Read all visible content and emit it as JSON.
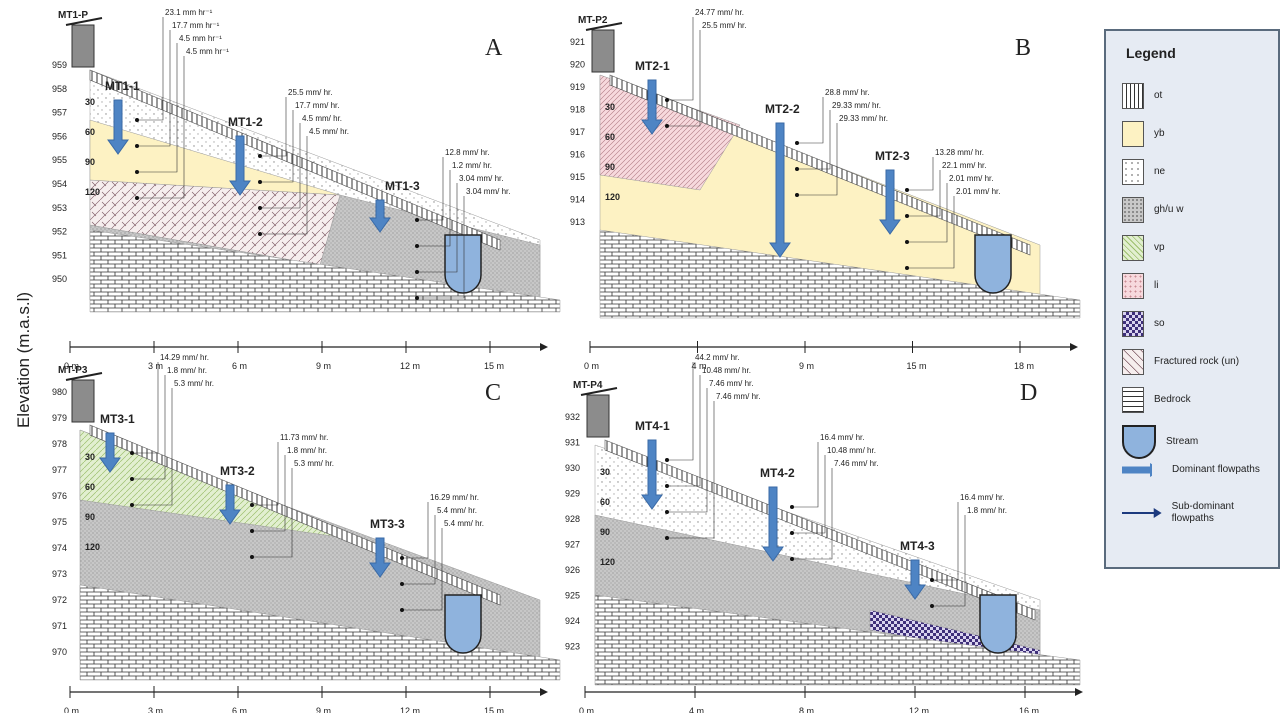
{
  "y_axis_label": "Elevation (m.a.s.l)",
  "panels": [
    {
      "letter": "A",
      "well": "MT1-P",
      "elevations": [
        "959",
        "958",
        "957",
        "956",
        "955",
        "954",
        "953",
        "952",
        "951",
        "950"
      ],
      "depths": [
        "30",
        "60",
        "90",
        "120"
      ],
      "x_ticks": [
        "0 m",
        "3 m",
        "6 m",
        "9 m",
        "12 m",
        "15 m"
      ],
      "stations": [
        {
          "name": "MT1-1",
          "rates": [
            "23.1 mm hr⁻¹",
            "17.7 mm hr⁻¹",
            "4.5 mm hr⁻¹",
            "4.5 mm hr⁻¹"
          ]
        },
        {
          "name": "MT1-2",
          "rates": [
            "25.5 mm/ hr.",
            "17.7 mm/ hr.",
            "4.5 mm/ hr.",
            "4.5 mm/ hr."
          ]
        },
        {
          "name": "MT1-3",
          "rates": [
            "12.8 mm/ hr.",
            "1.2 mm/ hr.",
            "3.04 mm/ hr.",
            "3.04 mm/ hr."
          ]
        }
      ]
    },
    {
      "letter": "B",
      "well": "MT-P2",
      "elevations": [
        "921",
        "920",
        "919",
        "918",
        "917",
        "916",
        "915",
        "914",
        "913"
      ],
      "depths": [
        "30",
        "60",
        "90",
        "120"
      ],
      "x_ticks": [
        "0 m",
        "4 m",
        "9 m",
        "15 m",
        "18 m"
      ],
      "stations": [
        {
          "name": "MT2-1",
          "rates": [
            "24.77 mm/ hr.",
            "25.5 mm/ hr."
          ]
        },
        {
          "name": "MT2-2",
          "rates": [
            "28.8 mm/ hr.",
            "29.33 mm/ hr.",
            "29.33 mm/ hr."
          ]
        },
        {
          "name": "MT2-3",
          "rates": [
            "13.28 mm/ hr.",
            "22.1 mm/ hr.",
            "2.01 mm/ hr.",
            "2.01 mm/ hr."
          ]
        }
      ]
    },
    {
      "letter": "C",
      "well": "MT-P3",
      "elevations": [
        "980",
        "979",
        "978",
        "977",
        "976",
        "975",
        "974",
        "973",
        "972",
        "971",
        "970"
      ],
      "depths": [
        "30",
        "60",
        "90",
        "120"
      ],
      "x_ticks": [
        "0 m",
        "3 m",
        "6 m",
        "9 m",
        "12 m",
        "15 m"
      ],
      "stations": [
        {
          "name": "MT3-1",
          "rates": [
            "14.29 mm/ hr.",
            "1.8 mm/ hr.",
            "5.3 mm/ hr."
          ]
        },
        {
          "name": "MT3-2",
          "rates": [
            "11.73 mm/ hr.",
            "1.8 mm/ hr.",
            "5.3 mm/ hr."
          ]
        },
        {
          "name": "MT3-3",
          "rates": [
            "16.29 mm/ hr.",
            "5.4 mm/ hr.",
            "5.4 mm/ hr."
          ]
        }
      ]
    },
    {
      "letter": "D",
      "well": "MT-P4",
      "elevations": [
        "932",
        "931",
        "930",
        "929",
        "928",
        "927",
        "926",
        "925",
        "924",
        "923"
      ],
      "depths": [
        "30",
        "60",
        "90",
        "120"
      ],
      "x_ticks": [
        "0 m",
        "4 m",
        "8 m",
        "12 m",
        "16 m"
      ],
      "stations": [
        {
          "name": "MT4-1",
          "rates": [
            "44.2 mm/ hr.",
            "10.48 mm/ hr.",
            "7.46 mm/ hr.",
            "7.46 mm/ hr."
          ]
        },
        {
          "name": "MT4-2",
          "rates": [
            "16.4 mm/ hr.",
            "10.48 mm/ hr.",
            "7.46 mm/ hr."
          ]
        },
        {
          "name": "MT4-3",
          "rates": [
            "16.4 mm/ hr.",
            "1.8 mm/ hr."
          ]
        }
      ]
    }
  ],
  "legend": {
    "title": "Legend",
    "items": [
      {
        "label": "ot",
        "pattern": "vlines"
      },
      {
        "label": "yb",
        "color": "#fdf2c3"
      },
      {
        "label": "ne",
        "pattern": "dots"
      },
      {
        "label": "gh/u w",
        "pattern": "grid"
      },
      {
        "label": "vp",
        "pattern": "green"
      },
      {
        "label": "li",
        "pattern": "pink"
      },
      {
        "label": "so",
        "pattern": "check"
      },
      {
        "label": "Fractured rock (un)",
        "pattern": "frac"
      },
      {
        "label": "Bedrock",
        "pattern": "brick"
      },
      {
        "label": "Stream",
        "pattern": "stream"
      },
      {
        "label": "Dominant flowpaths",
        "pattern": "dom"
      },
      {
        "label": "Sub-dominant flowpaths",
        "pattern": "sub"
      }
    ]
  },
  "colors": {
    "dominant": "#4e84c4",
    "subdominant": "#1c3a7e",
    "stream": "#8fb3dd",
    "yb": "#fdf2c3"
  }
}
